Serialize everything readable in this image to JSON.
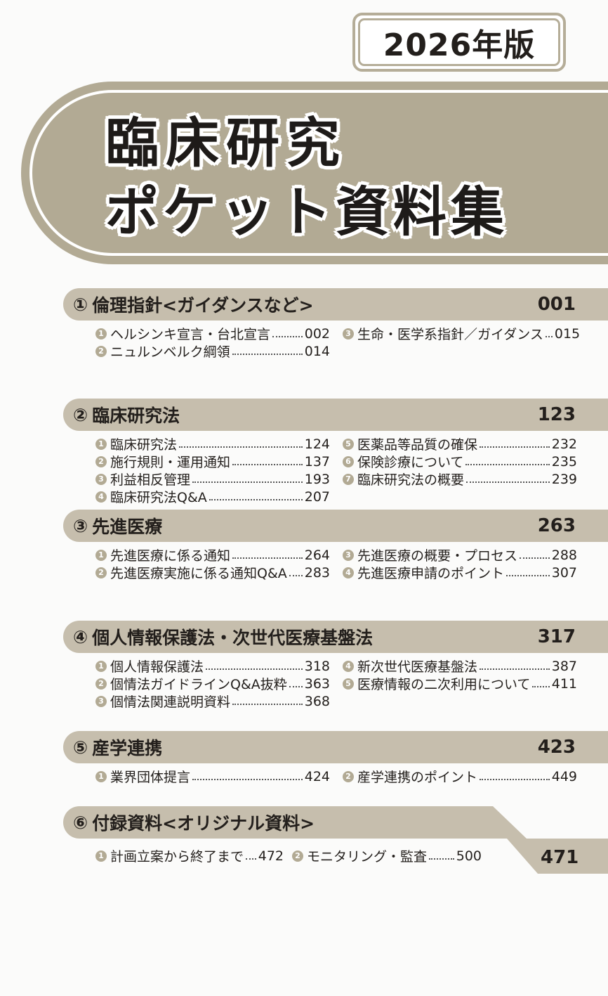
{
  "edition": "2026年版",
  "title": {
    "line1": "臨床研究",
    "line2": "ポケット資料集"
  },
  "sections": [
    {
      "num": "①",
      "title": "倫理指針<ガイダンスなど>",
      "page": "001",
      "items": [
        {
          "n": "1",
          "label": "ヘルシンキ宣言・台北宣言",
          "page": "002"
        },
        {
          "n": "2",
          "label": "ニュルンベルク綱領",
          "page": "014"
        },
        {
          "n": "3",
          "label": "生命・医学系指針／ガイダンス",
          "page": "015"
        }
      ]
    },
    {
      "num": "②",
      "title": "臨床研究法",
      "page": "123",
      "items": [
        {
          "n": "1",
          "label": "臨床研究法",
          "page": "124"
        },
        {
          "n": "2",
          "label": "施行規則・運用通知",
          "page": "137"
        },
        {
          "n": "3",
          "label": "利益相反管理",
          "page": "193"
        },
        {
          "n": "4",
          "label": "臨床研究法Q&A",
          "page": "207"
        },
        {
          "n": "5",
          "label": "医薬品等品質の確保",
          "page": "232"
        },
        {
          "n": "6",
          "label": "保険診療について",
          "page": "235"
        },
        {
          "n": "7",
          "label": "臨床研究法の概要",
          "page": "239"
        }
      ]
    },
    {
      "num": "③",
      "title": "先進医療",
      "page": "263",
      "items": [
        {
          "n": "1",
          "label": "先進医療に係る通知",
          "page": "264"
        },
        {
          "n": "2",
          "label": "先進医療実施に係る通知Q&A",
          "page": "283"
        },
        {
          "n": "3",
          "label": "先進医療の概要・プロセス",
          "page": "288"
        },
        {
          "n": "4",
          "label": "先進医療申請のポイント",
          "page": "307"
        }
      ]
    },
    {
      "num": "④",
      "title": "個人情報保護法・次世代医療基盤法",
      "page": "317",
      "items": [
        {
          "n": "1",
          "label": "個人情報保護法",
          "page": "318"
        },
        {
          "n": "2",
          "label": "個情法ガイドラインQ&A抜粋",
          "page": "363"
        },
        {
          "n": "3",
          "label": "個情法関連説明資料",
          "page": "368"
        },
        {
          "n": "4",
          "label": "新次世代医療基盤法",
          "page": "387"
        },
        {
          "n": "5",
          "label": "医療情報の二次利用について",
          "page": "411"
        }
      ]
    },
    {
      "num": "⑤",
      "title": "産学連携",
      "page": "423",
      "items": [
        {
          "n": "1",
          "label": "業界団体提言",
          "page": "424"
        },
        {
          "n": "2",
          "label": "産学連携のポイント",
          "page": "449"
        }
      ]
    },
    {
      "num": "⑥",
      "title": "付録資料<オリジナル資料>",
      "page": "471",
      "items": [
        {
          "n": "1",
          "label": "計画立案から終了まで",
          "page": "472"
        },
        {
          "n": "2",
          "label": "モニタリング・監査",
          "page": "500"
        }
      ]
    }
  ],
  "colors": {
    "banner": "#b2aa94",
    "section_bar": "#c6bead",
    "text": "#231f1c"
  }
}
